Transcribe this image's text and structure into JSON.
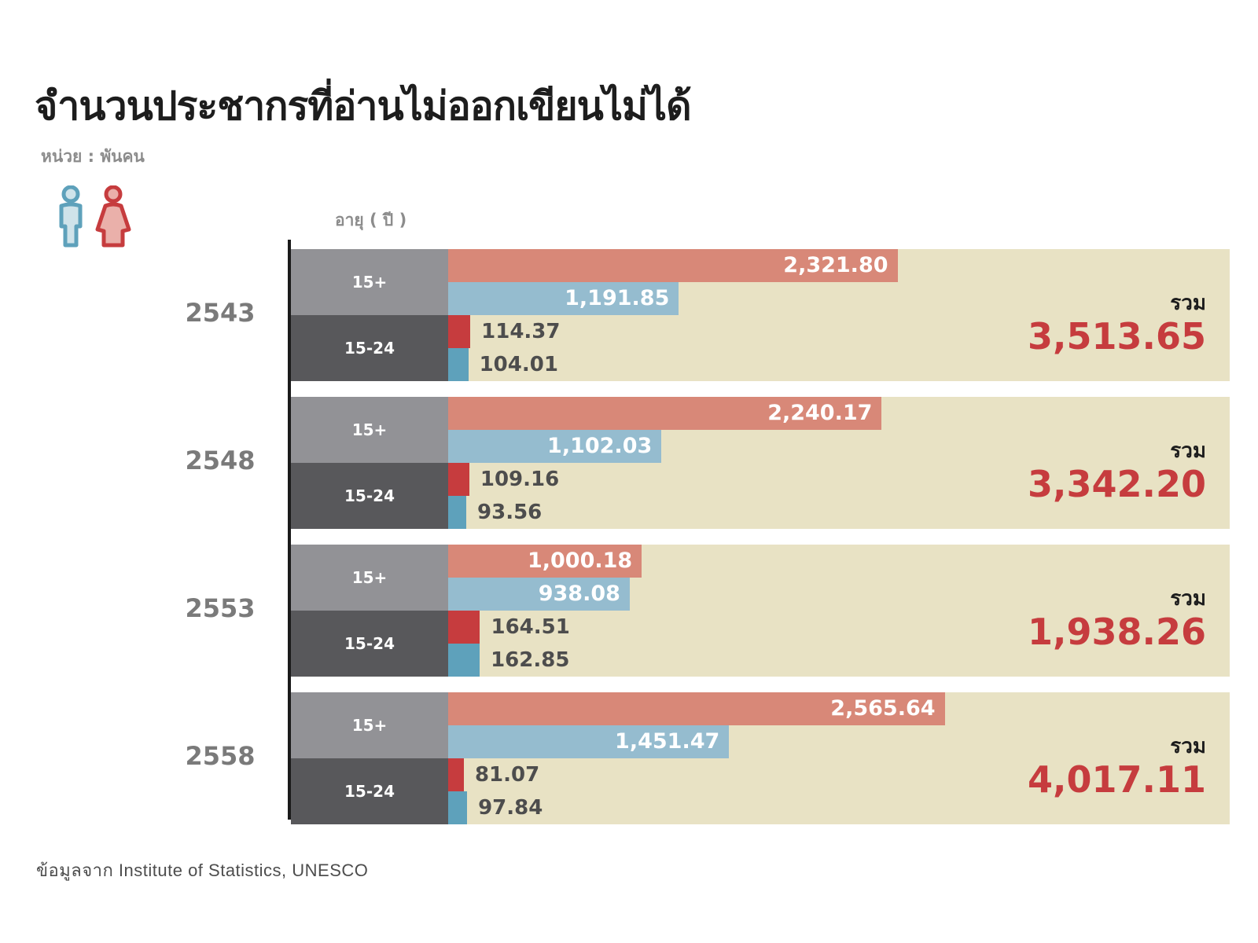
{
  "title": "จำนวนประชากรที่อ่านไม่ออกเขียนไม่ได้",
  "unit_label": "หน่วย : พันคน",
  "axis_label": "อายุ ( ปี )",
  "source": "ข้อมูลจาก Institute of Statistics, UNESCO",
  "colors": {
    "female_15plus": "#d88878",
    "male_15plus": "#95bccf",
    "female_15_24": "#c63c3e",
    "male_15_24": "#5ea1bb",
    "panel_bg": "#e8e2c4",
    "total_red": "#c63c3e"
  },
  "legend": {
    "icons": [
      "male-icon",
      "female-icon"
    ]
  },
  "chart_data": {
    "type": "bar",
    "title": "จำนวนประชากรที่อ่านไม่ออกเขียนไม่ได้",
    "unit": "หน่วย : พันคน",
    "ylabel": "อายุ ( ปี )",
    "categories": [
      "2543",
      "2548",
      "2553",
      "2558"
    ],
    "age_groups": [
      "15+",
      "15-24"
    ],
    "total_label": "รวม",
    "groups": [
      {
        "year": "2543",
        "age_15plus_label": "15+",
        "age_15_24_label": "15-24",
        "female_15plus": 2321.8,
        "male_15plus": 1191.85,
        "female_15_24": 114.37,
        "male_15_24": 104.01,
        "female_15plus_text": "2,321.80",
        "male_15plus_text": "1,191.85",
        "female_15_24_text": "114.37",
        "male_15_24_text": "104.01",
        "total_label": "รวม",
        "total_text": "3,513.65"
      },
      {
        "year": "2548",
        "age_15plus_label": "15+",
        "age_15_24_label": "15-24",
        "female_15plus": 2240.17,
        "male_15plus": 1102.03,
        "female_15_24": 109.16,
        "male_15_24": 93.56,
        "female_15plus_text": "2,240.17",
        "male_15plus_text": "1,102.03",
        "female_15_24_text": "109.16",
        "male_15_24_text": "93.56",
        "total_label": "รวม",
        "total_text": "3,342.20"
      },
      {
        "year": "2553",
        "age_15plus_label": "15+",
        "age_15_24_label": "15-24",
        "female_15plus": 1000.18,
        "male_15plus": 938.08,
        "female_15_24": 164.51,
        "male_15_24": 162.85,
        "female_15plus_text": "1,000.18",
        "male_15plus_text": "938.08",
        "female_15_24_text": "164.51",
        "male_15_24_text": "162.85",
        "total_label": "รวม",
        "total_text": "1,938.26"
      },
      {
        "year": "2558",
        "age_15plus_label": "15+",
        "age_15_24_label": "15-24",
        "female_15plus": 2565.64,
        "male_15plus": 1451.47,
        "female_15_24": 81.07,
        "male_15_24": 97.84,
        "female_15plus_text": "2,565.64",
        "male_15plus_text": "1,451.47",
        "female_15_24_text": "81.07",
        "male_15_24_text": "97.84",
        "total_label": "รวม",
        "total_text": "4,017.11"
      }
    ]
  }
}
